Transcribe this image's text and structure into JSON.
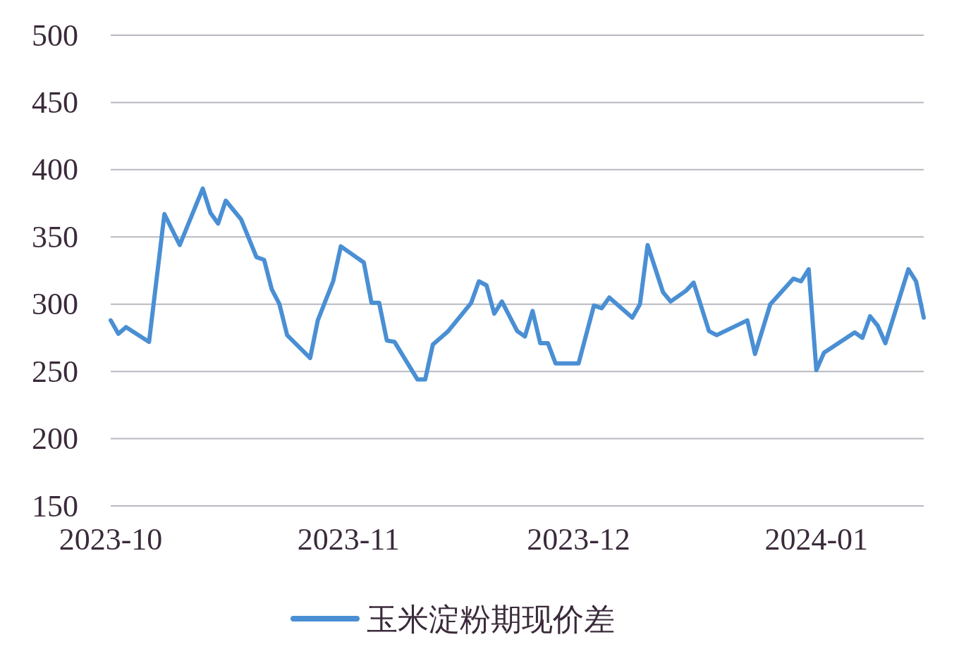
{
  "chart_data": {
    "type": "line",
    "xlim": [
      "2023-10-01",
      "2024-01-15"
    ],
    "xticks": [
      "2023-10",
      "2023-11",
      "2023-12",
      "2024-01"
    ],
    "ylim": [
      150,
      500
    ],
    "yticks": [
      150,
      200,
      250,
      300,
      350,
      400,
      450,
      500
    ],
    "grid": "y",
    "legend": "bottom",
    "marker": "none",
    "line_style": "solid",
    "series": [
      {
        "name": "玉米淀粉期现价差",
        "color": "#4a8fd4",
        "x": [
          "2023-10-01",
          "2023-10-02",
          "2023-10-03",
          "2023-10-06",
          "2023-10-08",
          "2023-10-10",
          "2023-10-13",
          "2023-10-14",
          "2023-10-15",
          "2023-10-16",
          "2023-10-18",
          "2023-10-20",
          "2023-10-21",
          "2023-10-22",
          "2023-10-23",
          "2023-10-24",
          "2023-10-27",
          "2023-10-28",
          "2023-10-30",
          "2023-10-31",
          "2023-11-03",
          "2023-11-04",
          "2023-11-05",
          "2023-11-06",
          "2023-11-07",
          "2023-11-10",
          "2023-11-11",
          "2023-11-12",
          "2023-11-14",
          "2023-11-17",
          "2023-11-18",
          "2023-11-19",
          "2023-11-20",
          "2023-11-21",
          "2023-11-23",
          "2023-11-24",
          "2023-11-25",
          "2023-11-26",
          "2023-11-27",
          "2023-11-28",
          "2023-12-01",
          "2023-12-03",
          "2023-12-04",
          "2023-12-05",
          "2023-12-08",
          "2023-12-09",
          "2023-12-10",
          "2023-12-12",
          "2023-12-13",
          "2023-12-15",
          "2023-12-16",
          "2023-12-18",
          "2023-12-19",
          "2023-12-23",
          "2023-12-24",
          "2023-12-26",
          "2023-12-29",
          "2023-12-30",
          "2023-12-31",
          "2024-01-01",
          "2024-01-02",
          "2024-01-06",
          "2024-01-07",
          "2024-01-08",
          "2024-01-09",
          "2024-01-10",
          "2024-01-13",
          "2024-01-14",
          "2024-01-15"
        ],
        "values": [
          288,
          278,
          283,
          272,
          367,
          344,
          386,
          368,
          360,
          377,
          363,
          335,
          333,
          311,
          300,
          277,
          260,
          288,
          317,
          343,
          331,
          301,
          301,
          273,
          272,
          244,
          244,
          270,
          280,
          301,
          317,
          314,
          293,
          302,
          280,
          276,
          295,
          271,
          271,
          256,
          256,
          299,
          297,
          305,
          290,
          300,
          344,
          309,
          302,
          310,
          316,
          280,
          277,
          288,
          263,
          300,
          319,
          317,
          326,
          251,
          264,
          279,
          275,
          291,
          284,
          271,
          326,
          317,
          290
        ]
      }
    ]
  }
}
